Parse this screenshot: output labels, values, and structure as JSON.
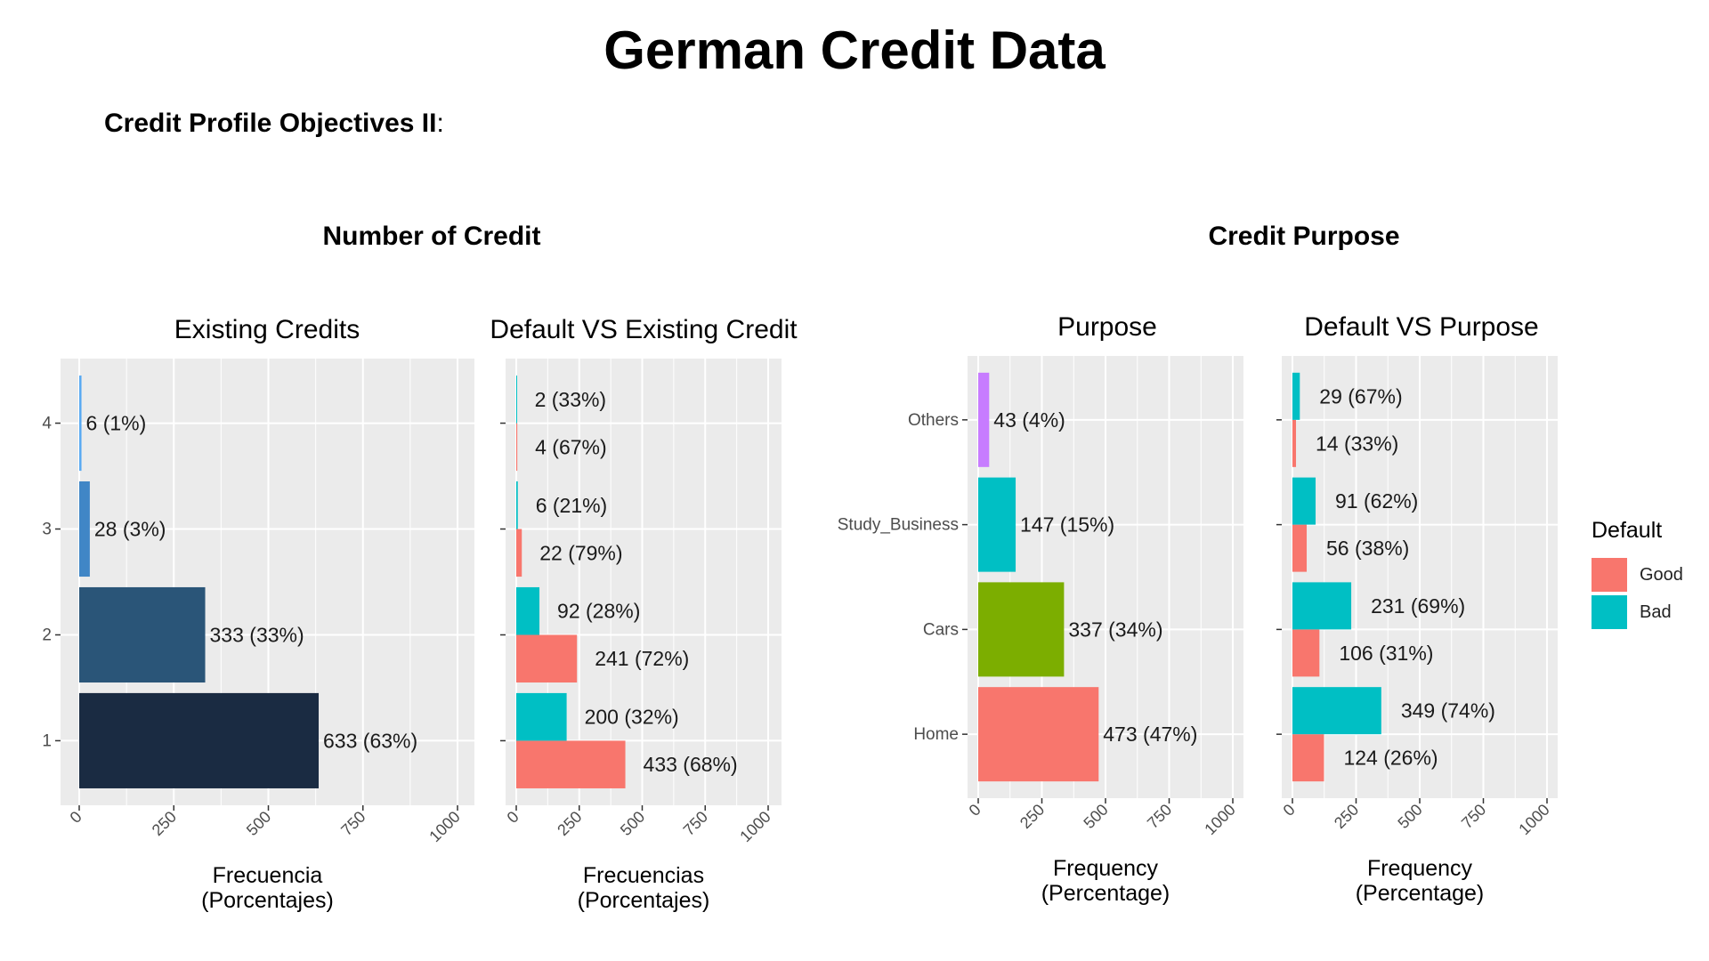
{
  "page": {
    "title": "German Credit Data",
    "subheading_bold": "Credit Profile Objectives II",
    "subheading_colon": ":",
    "section_left": "Number of Credit",
    "section_right": "Credit Purpose"
  },
  "colors": {
    "panel_bg": "#ebebeb",
    "grid": "#ffffff",
    "good": "#f8766d",
    "bad": "#00bfc4",
    "credit_1": "#1a2b42",
    "credit_2": "#2a5578",
    "credit_3": "#4086c6",
    "credit_4": "#5aaaf2",
    "purpose_home": "#f8766d",
    "purpose_cars": "#7cae00",
    "purpose_study": "#00bfc4",
    "purpose_others": "#c77cff"
  },
  "legend": {
    "title": "Default",
    "items": [
      {
        "label": "Good",
        "color": "#f8766d"
      },
      {
        "label": "Bad",
        "color": "#00bfc4"
      }
    ]
  },
  "chart_data": [
    {
      "type": "bar",
      "orientation": "horizontal",
      "title": "Existing Credits",
      "xlabel": [
        "Frecuencia",
        "(Porcentajes)"
      ],
      "categories": [
        "1",
        "2",
        "3",
        "4"
      ],
      "show_category_labels": true,
      "xlim": [
        0,
        1000
      ],
      "xticks": [
        "0",
        "250",
        "500",
        "750",
        "1000"
      ],
      "series": [
        {
          "values": [
            633,
            333,
            28,
            6
          ],
          "labels": [
            "633 (63%)",
            "333 (33%)",
            "28 (3%)",
            "6 (1%)"
          ],
          "colors": [
            "#1a2b42",
            "#2a5578",
            "#4086c6",
            "#5aaaf2"
          ]
        }
      ],
      "grid": true
    },
    {
      "type": "bar",
      "orientation": "horizontal",
      "title": "Default VS Existing Credit",
      "xlabel": [
        "Frecuencias",
        "(Porcentajes)"
      ],
      "categories": [
        "1",
        "2",
        "3",
        "4"
      ],
      "show_category_labels": false,
      "xlim": [
        0,
        1000
      ],
      "xticks": [
        "0",
        "250",
        "500",
        "750",
        "1000"
      ],
      "series": [
        {
          "name": "Good",
          "values": [
            433,
            241,
            22,
            4
          ],
          "labels": [
            "433 (68%)",
            "241 (72%)",
            "22 (79%)",
            "4 (67%)"
          ],
          "color": "#f8766d"
        },
        {
          "name": "Bad",
          "values": [
            200,
            92,
            6,
            2
          ],
          "labels": [
            "200 (32%)",
            "92 (28%)",
            "6 (21%)",
            "2 (33%)"
          ],
          "color": "#00bfc4"
        }
      ],
      "grid": true
    },
    {
      "type": "bar",
      "orientation": "horizontal",
      "title": "Purpose",
      "xlabel": [
        "Frequency",
        "(Percentage)"
      ],
      "categories": [
        "Home",
        "Cars",
        "Study_Business",
        "Others"
      ],
      "show_category_labels": true,
      "xlim": [
        0,
        1000
      ],
      "xticks": [
        "0",
        "250",
        "500",
        "750",
        "1000"
      ],
      "series": [
        {
          "values": [
            473,
            337,
            147,
            43
          ],
          "labels": [
            "473 (47%)",
            "337 (34%)",
            "147 (15%)",
            "43 (4%)"
          ],
          "colors": [
            "#f8766d",
            "#7cae00",
            "#00bfc4",
            "#c77cff"
          ]
        }
      ],
      "grid": true
    },
    {
      "type": "bar",
      "orientation": "horizontal",
      "title": "Default VS Purpose",
      "xlabel": [
        "Frequency",
        "(Percentage)"
      ],
      "categories": [
        "Home",
        "Cars",
        "Study_Business",
        "Others"
      ],
      "show_category_labels": false,
      "xlim": [
        0,
        1000
      ],
      "xticks": [
        "0",
        "250",
        "500",
        "750",
        "1000"
      ],
      "series": [
        {
          "name": "Good",
          "values": [
            124,
            106,
            56,
            14
          ],
          "labels": [
            "124 (26%)",
            "106 (31%)",
            "56 (38%)",
            "14 (33%)"
          ],
          "color": "#f8766d"
        },
        {
          "name": "Bad",
          "values": [
            349,
            231,
            91,
            29
          ],
          "labels": [
            "349 (74%)",
            "231 (69%)",
            "91 (62%)",
            "29 (67%)"
          ],
          "color": "#00bfc4"
        }
      ],
      "grid": true,
      "legend": "right"
    }
  ]
}
